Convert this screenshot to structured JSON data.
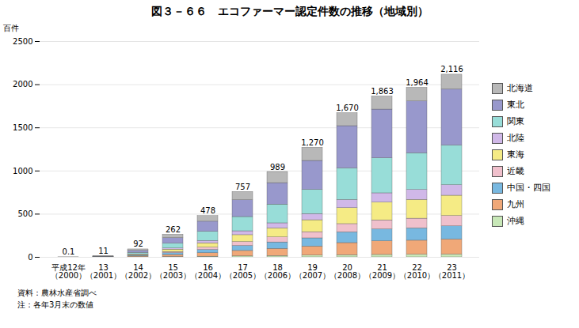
{
  "chart_data": {
    "type": "bar",
    "stacked": true,
    "title": "図３－６６　エコファーマー認定件数の推移（地域別）",
    "ylabel": "百件",
    "categories": [
      "平成12年\n（2000）",
      "13\n（2001）",
      "14\n（2002）",
      "15\n（2003）",
      "16\n（2004）",
      "17\n（2005）",
      "18\n（2006）",
      "19\n（2007）",
      "20\n（2008）",
      "21\n（2009）",
      "22\n（2010）",
      "23\n（2011）"
    ],
    "series": [
      {
        "name": "沖縄",
        "color": "#c8e8b8",
        "values": [
          0.05,
          0.5,
          3.0,
          5.0,
          8.0,
          12.0,
          16.0,
          20.0,
          25.0,
          28.0,
          30.0,
          32.0
        ]
      },
      {
        "name": "九州",
        "color": "#f0a878",
        "values": [
          0.0,
          1.5,
          8.0,
          22.0,
          40.0,
          62.0,
          82.0,
          105.0,
          140.0,
          158.0,
          163.0,
          175.0
        ]
      },
      {
        "name": "中国・四国",
        "color": "#78b8e0",
        "values": [
          0.0,
          1.0,
          7.0,
          22.0,
          38.0,
          58.0,
          75.0,
          95.0,
          125.0,
          138.0,
          143.0,
          152.0
        ]
      },
      {
        "name": "近畿",
        "color": "#f0c0cc",
        "values": [
          0.0,
          0.5,
          4.0,
          13.0,
          27.0,
          45.0,
          58.0,
          72.0,
          95.0,
          105.0,
          112.0,
          120.0
        ]
      },
      {
        "name": "東海",
        "color": "#f5eb85",
        "values": [
          0.0,
          1.0,
          8.0,
          28.0,
          50.0,
          80.0,
          105.0,
          138.0,
          185.0,
          205.0,
          218.0,
          235.0
        ]
      },
      {
        "name": "北陸",
        "color": "#d0b8e8",
        "values": [
          0.0,
          0.5,
          4.0,
          13.0,
          27.0,
          45.0,
          58.0,
          72.0,
          95.0,
          108.0,
          115.0,
          122.0
        ]
      },
      {
        "name": "関東",
        "color": "#98ddd8",
        "values": [
          0.0,
          2.0,
          18.0,
          55.0,
          105.0,
          165.0,
          218.0,
          280.0,
          365.0,
          405.0,
          425.0,
          460.0
        ]
      },
      {
        "name": "東北",
        "color": "#9898cc",
        "values": [
          0.0,
          2.0,
          22.0,
          65.0,
          118.0,
          195.0,
          248.0,
          335.0,
          490.0,
          565.0,
          600.0,
          650.0
        ]
      },
      {
        "name": "北海道",
        "color": "#b8b8b8",
        "values": [
          0.05,
          2.0,
          18.0,
          39.0,
          65.0,
          95.0,
          129.0,
          153.0,
          150.0,
          151.0,
          158.0,
          170.0
        ]
      }
    ],
    "totals": [
      0.1,
      11,
      92,
      262,
      478,
      757,
      989,
      1270,
      1670,
      1863,
      1964,
      2116
    ],
    "total_labels": [
      "0.1",
      "11",
      "92",
      "262",
      "478",
      "757",
      "989",
      "1,270",
      "1,670",
      "1,863",
      "1,964",
      "2,116"
    ],
    "ylim": [
      0,
      2500
    ],
    "yticks": [
      0,
      500,
      1000,
      1500,
      2000,
      2500
    ],
    "grid": true,
    "legend": "right",
    "notes": [
      "資料：農林水産省調べ",
      "注：各年3月末の数値"
    ]
  }
}
